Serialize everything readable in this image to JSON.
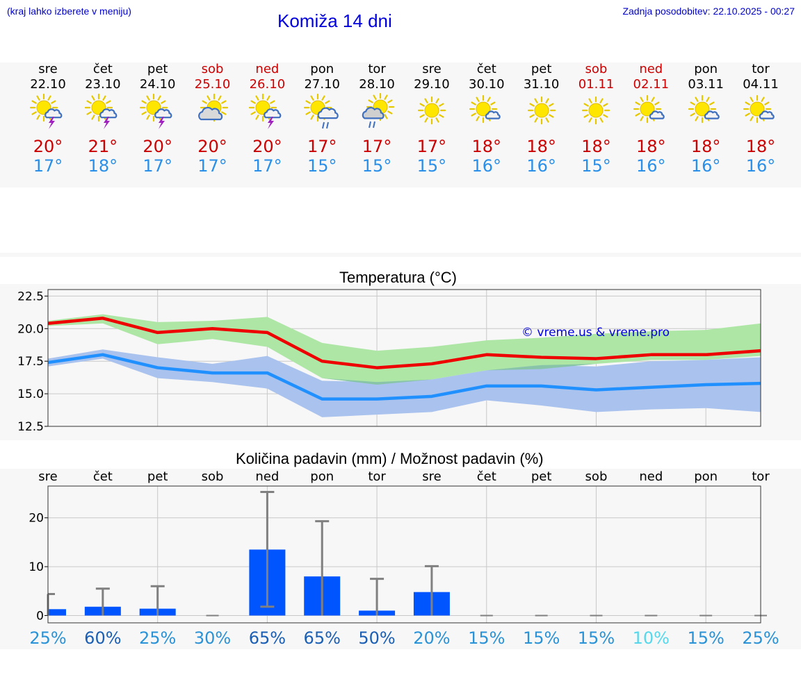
{
  "header": {
    "note_left": "(kraj lahko izberete v meniju)",
    "title": "Komiža 14 dni",
    "updated": "Zadnja posodobitev: 22.10.2025 - 00:27"
  },
  "days": [
    {
      "name": "sre",
      "date": "22.10",
      "weekend": false,
      "icon": "sun-cloud-thunder-icon",
      "tmax": "20°",
      "tmin": "17°"
    },
    {
      "name": "čet",
      "date": "23.10",
      "weekend": false,
      "icon": "sun-cloud-thunder-icon",
      "tmax": "21°",
      "tmin": "18°"
    },
    {
      "name": "pet",
      "date": "24.10",
      "weekend": false,
      "icon": "sun-cloud-thunder-icon",
      "tmax": "20°",
      "tmin": "17°"
    },
    {
      "name": "sob",
      "date": "25.10",
      "weekend": true,
      "icon": "sun-behind-cloud-icon",
      "tmax": "20°",
      "tmin": "17°"
    },
    {
      "name": "ned",
      "date": "26.10",
      "weekend": true,
      "icon": "sun-cloud-thunder-icon",
      "tmax": "20°",
      "tmin": "17°"
    },
    {
      "name": "pon",
      "date": "27.10",
      "weekend": false,
      "icon": "sun-cloud-rain-icon",
      "tmax": "17°",
      "tmin": "15°"
    },
    {
      "name": "tor",
      "date": "28.10",
      "weekend": false,
      "icon": "cloud-rain-sun-icon",
      "tmax": "17°",
      "tmin": "15°"
    },
    {
      "name": "sre",
      "date": "29.10",
      "weekend": false,
      "icon": "sun-icon",
      "tmax": "17°",
      "tmin": "15°"
    },
    {
      "name": "čet",
      "date": "30.10",
      "weekend": false,
      "icon": "sun-small-cloud-icon",
      "tmax": "18°",
      "tmin": "16°"
    },
    {
      "name": "pet",
      "date": "31.10",
      "weekend": false,
      "icon": "sun-icon",
      "tmax": "18°",
      "tmin": "16°"
    },
    {
      "name": "sob",
      "date": "01.11",
      "weekend": true,
      "icon": "sun-icon",
      "tmax": "18°",
      "tmin": "15°"
    },
    {
      "name": "ned",
      "date": "02.11",
      "weekend": true,
      "icon": "sun-small-cloud-icon",
      "tmax": "18°",
      "tmin": "16°"
    },
    {
      "name": "pon",
      "date": "03.11",
      "weekend": false,
      "icon": "sun-small-cloud-icon",
      "tmax": "18°",
      "tmin": "16°"
    },
    {
      "name": "tor",
      "date": "04.11",
      "weekend": false,
      "icon": "sun-small-cloud-icon",
      "tmax": "18°",
      "tmin": "16°"
    }
  ],
  "colors": {
    "title_blue": "#0000dd",
    "max_line": "#ee0000",
    "min_line": "#2090ff",
    "max_band": "#aee6a6",
    "min_band": "#a9c2ee",
    "overlap_band": "#88c4a8",
    "bar": "#0055ff",
    "errbar": "#808080",
    "pct_low": "#2a92d6",
    "pct_high": "#1a5fb4",
    "pct_lowest": "#56d8ec"
  },
  "chart_data": [
    {
      "type": "line",
      "title": "Temperatura (°C)",
      "watermark": "© vreme.us & vreme.pro",
      "ylim": [
        12.5,
        23.0
      ],
      "yticks": [
        12.5,
        15.0,
        17.5,
        20.0,
        22.5
      ],
      "ytick_labels": [
        "12.5",
        "15.0",
        "17.5",
        "20.0",
        "22.5"
      ],
      "series": [
        {
          "name": "max",
          "values": [
            20.4,
            20.8,
            19.7,
            20.0,
            19.7,
            17.5,
            17.0,
            17.3,
            18.0,
            17.8,
            17.7,
            18.0,
            18.0,
            18.3
          ]
        },
        {
          "name": "min",
          "values": [
            17.4,
            18.0,
            17.0,
            16.6,
            16.6,
            14.6,
            14.6,
            14.8,
            15.6,
            15.6,
            15.3,
            15.5,
            15.7,
            15.8
          ]
        }
      ],
      "bands": [
        {
          "name": "max_range",
          "lower": [
            20.2,
            20.4,
            18.8,
            19.2,
            18.6,
            16.2,
            15.7,
            16.1,
            16.8,
            16.9,
            17.3,
            17.6,
            17.6,
            17.9
          ],
          "upper": [
            20.6,
            21.1,
            20.5,
            20.6,
            20.9,
            18.9,
            18.3,
            18.6,
            19.1,
            19.3,
            19.6,
            19.8,
            19.9,
            20.4
          ]
        },
        {
          "name": "min_range",
          "lower": [
            17.1,
            17.7,
            16.2,
            15.9,
            15.4,
            13.2,
            13.4,
            13.6,
            14.5,
            14.1,
            13.6,
            13.8,
            13.9,
            13.6
          ],
          "upper": [
            17.7,
            18.4,
            17.8,
            17.3,
            17.9,
            16.0,
            15.9,
            16.1,
            16.8,
            17.2,
            17.1,
            17.5,
            17.6,
            17.8
          ]
        }
      ]
    },
    {
      "type": "bar",
      "title": "Količina padavin (mm) / Možnost padavin (%)",
      "categories": [
        "sre",
        "čet",
        "pet",
        "sob",
        "ned",
        "pon",
        "tor",
        "sre",
        "čet",
        "pet",
        "sob",
        "ned",
        "pon",
        "tor"
      ],
      "ylim": [
        -1.5,
        26.5
      ],
      "yticks": [
        0,
        10,
        20
      ],
      "ytick_labels": [
        "0",
        "10",
        "20"
      ],
      "values": [
        1.3,
        1.8,
        1.4,
        0,
        13.5,
        8.0,
        1.0,
        4.8,
        0,
        0,
        0,
        0,
        0,
        0
      ],
      "error_low": [
        0,
        0,
        0,
        0,
        1.8,
        0,
        0,
        0,
        0,
        0,
        0,
        0,
        0,
        0
      ],
      "error_high": [
        4.4,
        5.5,
        6.0,
        0,
        25.3,
        19.3,
        7.5,
        10.1,
        0,
        0,
        0,
        0,
        0,
        0
      ],
      "probability": [
        "25%",
        "60%",
        "25%",
        "30%",
        "65%",
        "65%",
        "50%",
        "20%",
        "15%",
        "15%",
        "15%",
        "10%",
        "15%",
        "25%"
      ]
    }
  ]
}
